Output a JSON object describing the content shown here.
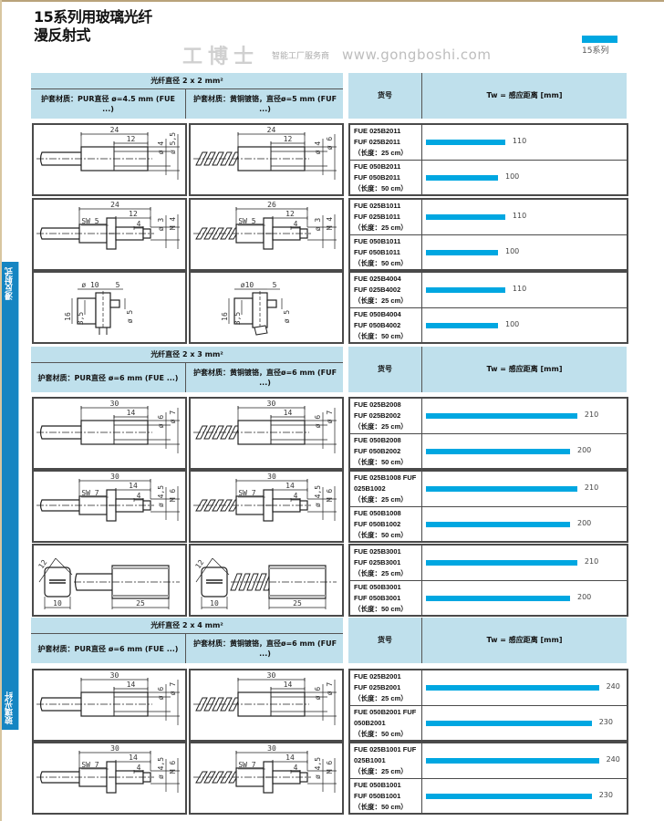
{
  "page": {
    "title_line1": "15系列用玻璃光纤",
    "title_line2": "漫反射式",
    "series_badge": "15系列",
    "side_tabs": [
      "漫反射式",
      "玻璃光纤"
    ],
    "watermark": {
      "brand": "工博士",
      "slogan": "智能工厂服务商",
      "site": "www.gongboshi.com"
    }
  },
  "colors": {
    "header_bg": "#bfe0ec",
    "bar": "#00a7e1",
    "side_tab": "#1585c2"
  },
  "sections": [
    {
      "header": {
        "title": "光纤直径 2 x 2 mm²",
        "left_col": "护套材质：PUR直径 ø=4.5 mm (FUE ...)",
        "right_col": "护套材质：黄铜镀铬，直径ø=5 mm (FUF ...)",
        "part_no": "货号",
        "tw_label": "Tw = 感应距离 [mm]"
      },
      "groups": [
        {
          "drawings": [
            {
              "type": "straight",
              "spiral": false,
              "dims": {
                "L": "24",
                "l": "12",
                "d1": "ø 4",
                "d2": "ø 5,5"
              }
            },
            {
              "type": "straight",
              "spiral": true,
              "dims": {
                "L": "24",
                "l": "12",
                "d1": "ø 4",
                "d2": "ø 6"
              }
            }
          ],
          "rows": [
            {
              "lines": [
                "FUE 025B2011",
                "FUF 025B2011",
                "（长度：25 cm）"
              ],
              "value": 110
            },
            {
              "lines": [
                "FUE 050B2011",
                "FUF 050B2011",
                "（长度：50 cm）"
              ],
              "value": 100
            }
          ]
        },
        {
          "drawings": [
            {
              "type": "nut",
              "spiral": false,
              "dims": {
                "L": "24",
                "l": "12",
                "sw": "SW 5",
                "t": "4",
                "d": "ø 3",
                "m": "M 4"
              }
            },
            {
              "type": "nut",
              "spiral": true,
              "dims": {
                "L": "26",
                "l": "12",
                "sw": "SW 5",
                "t": "4",
                "d": "ø 3",
                "m": "M 4"
              }
            }
          ],
          "rows": [
            {
              "lines": [
                "FUE 025B1011",
                "FUF 025B1011",
                "（长度：25 cm）"
              ],
              "value": 110
            },
            {
              "lines": [
                "FUE 050B1011",
                "FUF 050B1011",
                "（长度：50 cm）"
              ],
              "value": 100
            }
          ]
        },
        {
          "drawings": [
            {
              "type": "angle",
              "spiral": false,
              "dims": {
                "a": "ø 10",
                "b": "5",
                "h": "16",
                "c": "3,5",
                "d": "ø 5"
              }
            },
            {
              "type": "angle",
              "spiral": true,
              "dims": {
                "a": "ø10",
                "b": "5",
                "h": "16",
                "c": "3,5",
                "d": "ø 5"
              }
            }
          ],
          "rows": [
            {
              "lines": [
                "FUE 025B4004",
                "FUF 025B4002",
                "（长度：25 cm）"
              ],
              "value": 110
            },
            {
              "lines": [
                "FUE 050B4004",
                "FUF 050B4002",
                "（长度：50 cm）"
              ],
              "value": 100
            }
          ]
        }
      ]
    },
    {
      "header": {
        "title": "光纤直径 2 x 3 mm²",
        "left_col": "护套材质：PUR直径 ø=6 mm (FUE ...)",
        "right_col": "护套材质：黄铜镀铬，直径ø=6 mm (FUF ...)",
        "part_no": "货号",
        "tw_label": "Tw = 感应距离 [mm]"
      },
      "groups": [
        {
          "drawings": [
            {
              "type": "straight",
              "spiral": false,
              "dims": {
                "L": "30",
                "l": "14",
                "d1": "ø 6",
                "d2": "ø 7"
              }
            },
            {
              "type": "straight",
              "spiral": true,
              "dims": {
                "L": "30",
                "l": "14",
                "d1": "ø 6",
                "d2": "ø 7"
              }
            }
          ],
          "rows": [
            {
              "lines": [
                "FUE 025B2008",
                "FUF 025B2002",
                "（长度：25 cm）"
              ],
              "value": 210
            },
            {
              "lines": [
                "FUE 050B2008",
                "FUF 050B2002",
                "（长度：50 cm）"
              ],
              "value": 200
            }
          ]
        },
        {
          "drawings": [
            {
              "type": "nut",
              "spiral": false,
              "dims": {
                "L": "30",
                "l": "14",
                "sw": "SW 7",
                "t": "4",
                "d": "ø 4,5",
                "m": "M 6"
              }
            },
            {
              "type": "nut",
              "spiral": true,
              "dims": {
                "L": "30",
                "l": "14",
                "sw": "SW 7",
                "t": "4",
                "d": "ø 4,5",
                "m": "M 6"
              }
            }
          ],
          "rows": [
            {
              "lines": [
                "FUE 025B1008 FUF",
                "025B1002",
                "（长度：25 cm）"
              ],
              "value": 210
            },
            {
              "lines": [
                "FUE 050B1008",
                "FUF 050B1002",
                "（长度：50 cm）"
              ],
              "value": 200
            }
          ]
        },
        {
          "drawings": [
            {
              "type": "square",
              "spiral": false,
              "dims": {
                "diag": "12",
                "w": "10",
                "l": "25"
              }
            },
            {
              "type": "square",
              "spiral": true,
              "dims": {
                "diag": "12",
                "w": "10",
                "l": "25"
              }
            }
          ],
          "rows": [
            {
              "lines": [
                "FUE 025B3001",
                "FUF 025B3001",
                "（长度：25 cm）"
              ],
              "value": 210
            },
            {
              "lines": [
                "FUE 050B3001",
                "FUF 050B3001",
                "（长度：50 cm）"
              ],
              "value": 200
            }
          ]
        }
      ]
    },
    {
      "header": {
        "title": "光纤直径 2 x 4 mm²",
        "left_col": "护套材质：PUR直径 ø=6 mm (FUE ...)",
        "right_col": "护套材质：黄铜镀铬，直径ø=6 mm (FUF ...)",
        "part_no": "货号",
        "tw_label": "Tw = 感应距离 [mm]"
      },
      "groups": [
        {
          "drawings": [
            {
              "type": "straight",
              "spiral": false,
              "dims": {
                "L": "30",
                "l": "14",
                "d1": "ø 6",
                "d2": "ø 7"
              }
            },
            {
              "type": "straight",
              "spiral": true,
              "dims": {
                "L": "30",
                "l": "14",
                "d1": "ø 6",
                "d2": "ø 7"
              }
            }
          ],
          "rows": [
            {
              "lines": [
                "FUE 025B2001",
                "FUF 025B2001",
                "（长度：25 cm）"
              ],
              "value": 240
            },
            {
              "lines": [
                "FUE 050B2001 FUF",
                "050B2001",
                "（长度：50 cm）"
              ],
              "value": 230
            }
          ]
        },
        {
          "drawings": [
            {
              "type": "nut",
              "spiral": false,
              "dims": {
                "L": "30",
                "l": "14",
                "sw": "SW 7",
                "t": "4",
                "d": "ø 4,5",
                "m": "M 6"
              }
            },
            {
              "type": "nut",
              "spiral": true,
              "dims": {
                "L": "30",
                "l": "14",
                "sw": "SW 7",
                "t": "4",
                "d": "ø 4,5",
                "m": "M 6"
              }
            }
          ],
          "rows": [
            {
              "lines": [
                "FUE 025B1001 FUF",
                "025B1001",
                "（长度：25 cm）"
              ],
              "value": 240
            },
            {
              "lines": [
                "FUE 050B1001",
                "FUF 050B1001",
                "（长度：50 cm）"
              ],
              "value": 230
            }
          ]
        }
      ]
    }
  ]
}
